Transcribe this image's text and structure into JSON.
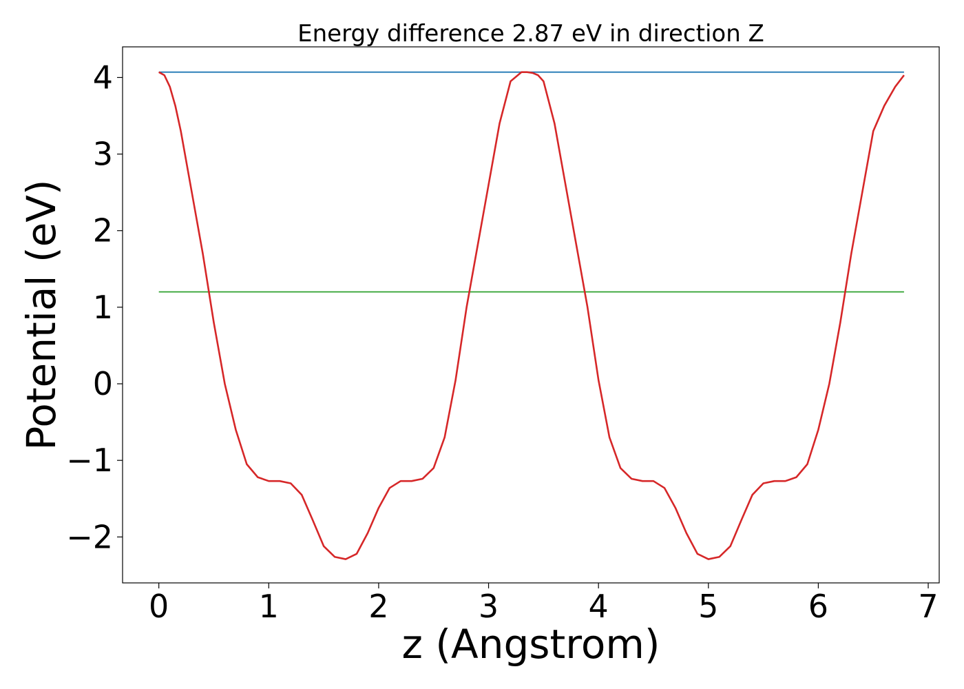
{
  "chart_data": {
    "type": "line",
    "title": "Energy difference 2.87 eV in direction Z",
    "xlabel": "z (Angstrom)",
    "ylabel": "Potential (eV)",
    "xlim": [
      -0.33,
      7.1
    ],
    "ylim": [
      -2.6,
      4.4
    ],
    "x_ticks": [
      0,
      1,
      2,
      3,
      4,
      5,
      6,
      7
    ],
    "x_tick_labels": [
      "0",
      "1",
      "2",
      "3",
      "4",
      "5",
      "6",
      "7"
    ],
    "y_ticks": [
      -2,
      -1,
      0,
      1,
      2,
      3,
      4
    ],
    "y_tick_labels": [
      "−2",
      "−1",
      "0",
      "1",
      "2",
      "3",
      "4"
    ],
    "grid": false,
    "colors": {
      "potential": "#d62728",
      "vacuum": "#1f77b4",
      "fermi": "#2ca02c"
    },
    "series": [
      {
        "color": "#d62728",
        "x": [
          0.0,
          0.05,
          0.1,
          0.15,
          0.2,
          0.3,
          0.4,
          0.5,
          0.6,
          0.7,
          0.8,
          0.9,
          1.0,
          1.1,
          1.2,
          1.3,
          1.4,
          1.5,
          1.6,
          1.7,
          1.8,
          1.9,
          2.0,
          2.1,
          2.2,
          2.3,
          2.4,
          2.5,
          2.6,
          2.7,
          2.8,
          2.9,
          3.0,
          3.1,
          3.2,
          3.3,
          3.35,
          3.4,
          3.45,
          3.5,
          3.6,
          3.7,
          3.8,
          3.9,
          4.0,
          4.1,
          4.2,
          4.3,
          4.4,
          4.5,
          4.6,
          4.7,
          4.8,
          4.9,
          5.0,
          5.1,
          5.2,
          5.3,
          5.4,
          5.5,
          5.6,
          5.7,
          5.8,
          5.9,
          6.0,
          6.1,
          6.2,
          6.3,
          6.4,
          6.5,
          6.6,
          6.7,
          6.78
        ],
        "y": [
          4.07,
          4.03,
          3.88,
          3.63,
          3.3,
          2.5,
          1.7,
          0.8,
          0.0,
          -0.6,
          -1.05,
          -1.22,
          -1.27,
          -1.27,
          -1.3,
          -1.45,
          -1.78,
          -2.12,
          -2.26,
          -2.29,
          -2.22,
          -1.95,
          -1.62,
          -1.36,
          -1.27,
          -1.27,
          -1.24,
          -1.1,
          -0.7,
          0.05,
          1.0,
          1.8,
          2.6,
          3.4,
          3.95,
          4.07,
          4.07,
          4.06,
          4.03,
          3.95,
          3.4,
          2.6,
          1.8,
          1.0,
          0.05,
          -0.7,
          -1.1,
          -1.24,
          -1.27,
          -1.27,
          -1.36,
          -1.62,
          -1.95,
          -2.22,
          -2.29,
          -2.26,
          -2.12,
          -1.78,
          -1.45,
          -1.3,
          -1.27,
          -1.27,
          -1.22,
          -1.05,
          -0.6,
          0.0,
          0.8,
          1.7,
          2.5,
          3.3,
          3.63,
          3.88,
          4.03
        ]
      },
      {
        "color": "#1f77b4",
        "x": [
          0.0,
          6.78
        ],
        "y": [
          4.07,
          4.07
        ]
      },
      {
        "color": "#2ca02c",
        "x": [
          0.0,
          6.78
        ],
        "y": [
          1.2,
          1.2
        ]
      }
    ]
  }
}
